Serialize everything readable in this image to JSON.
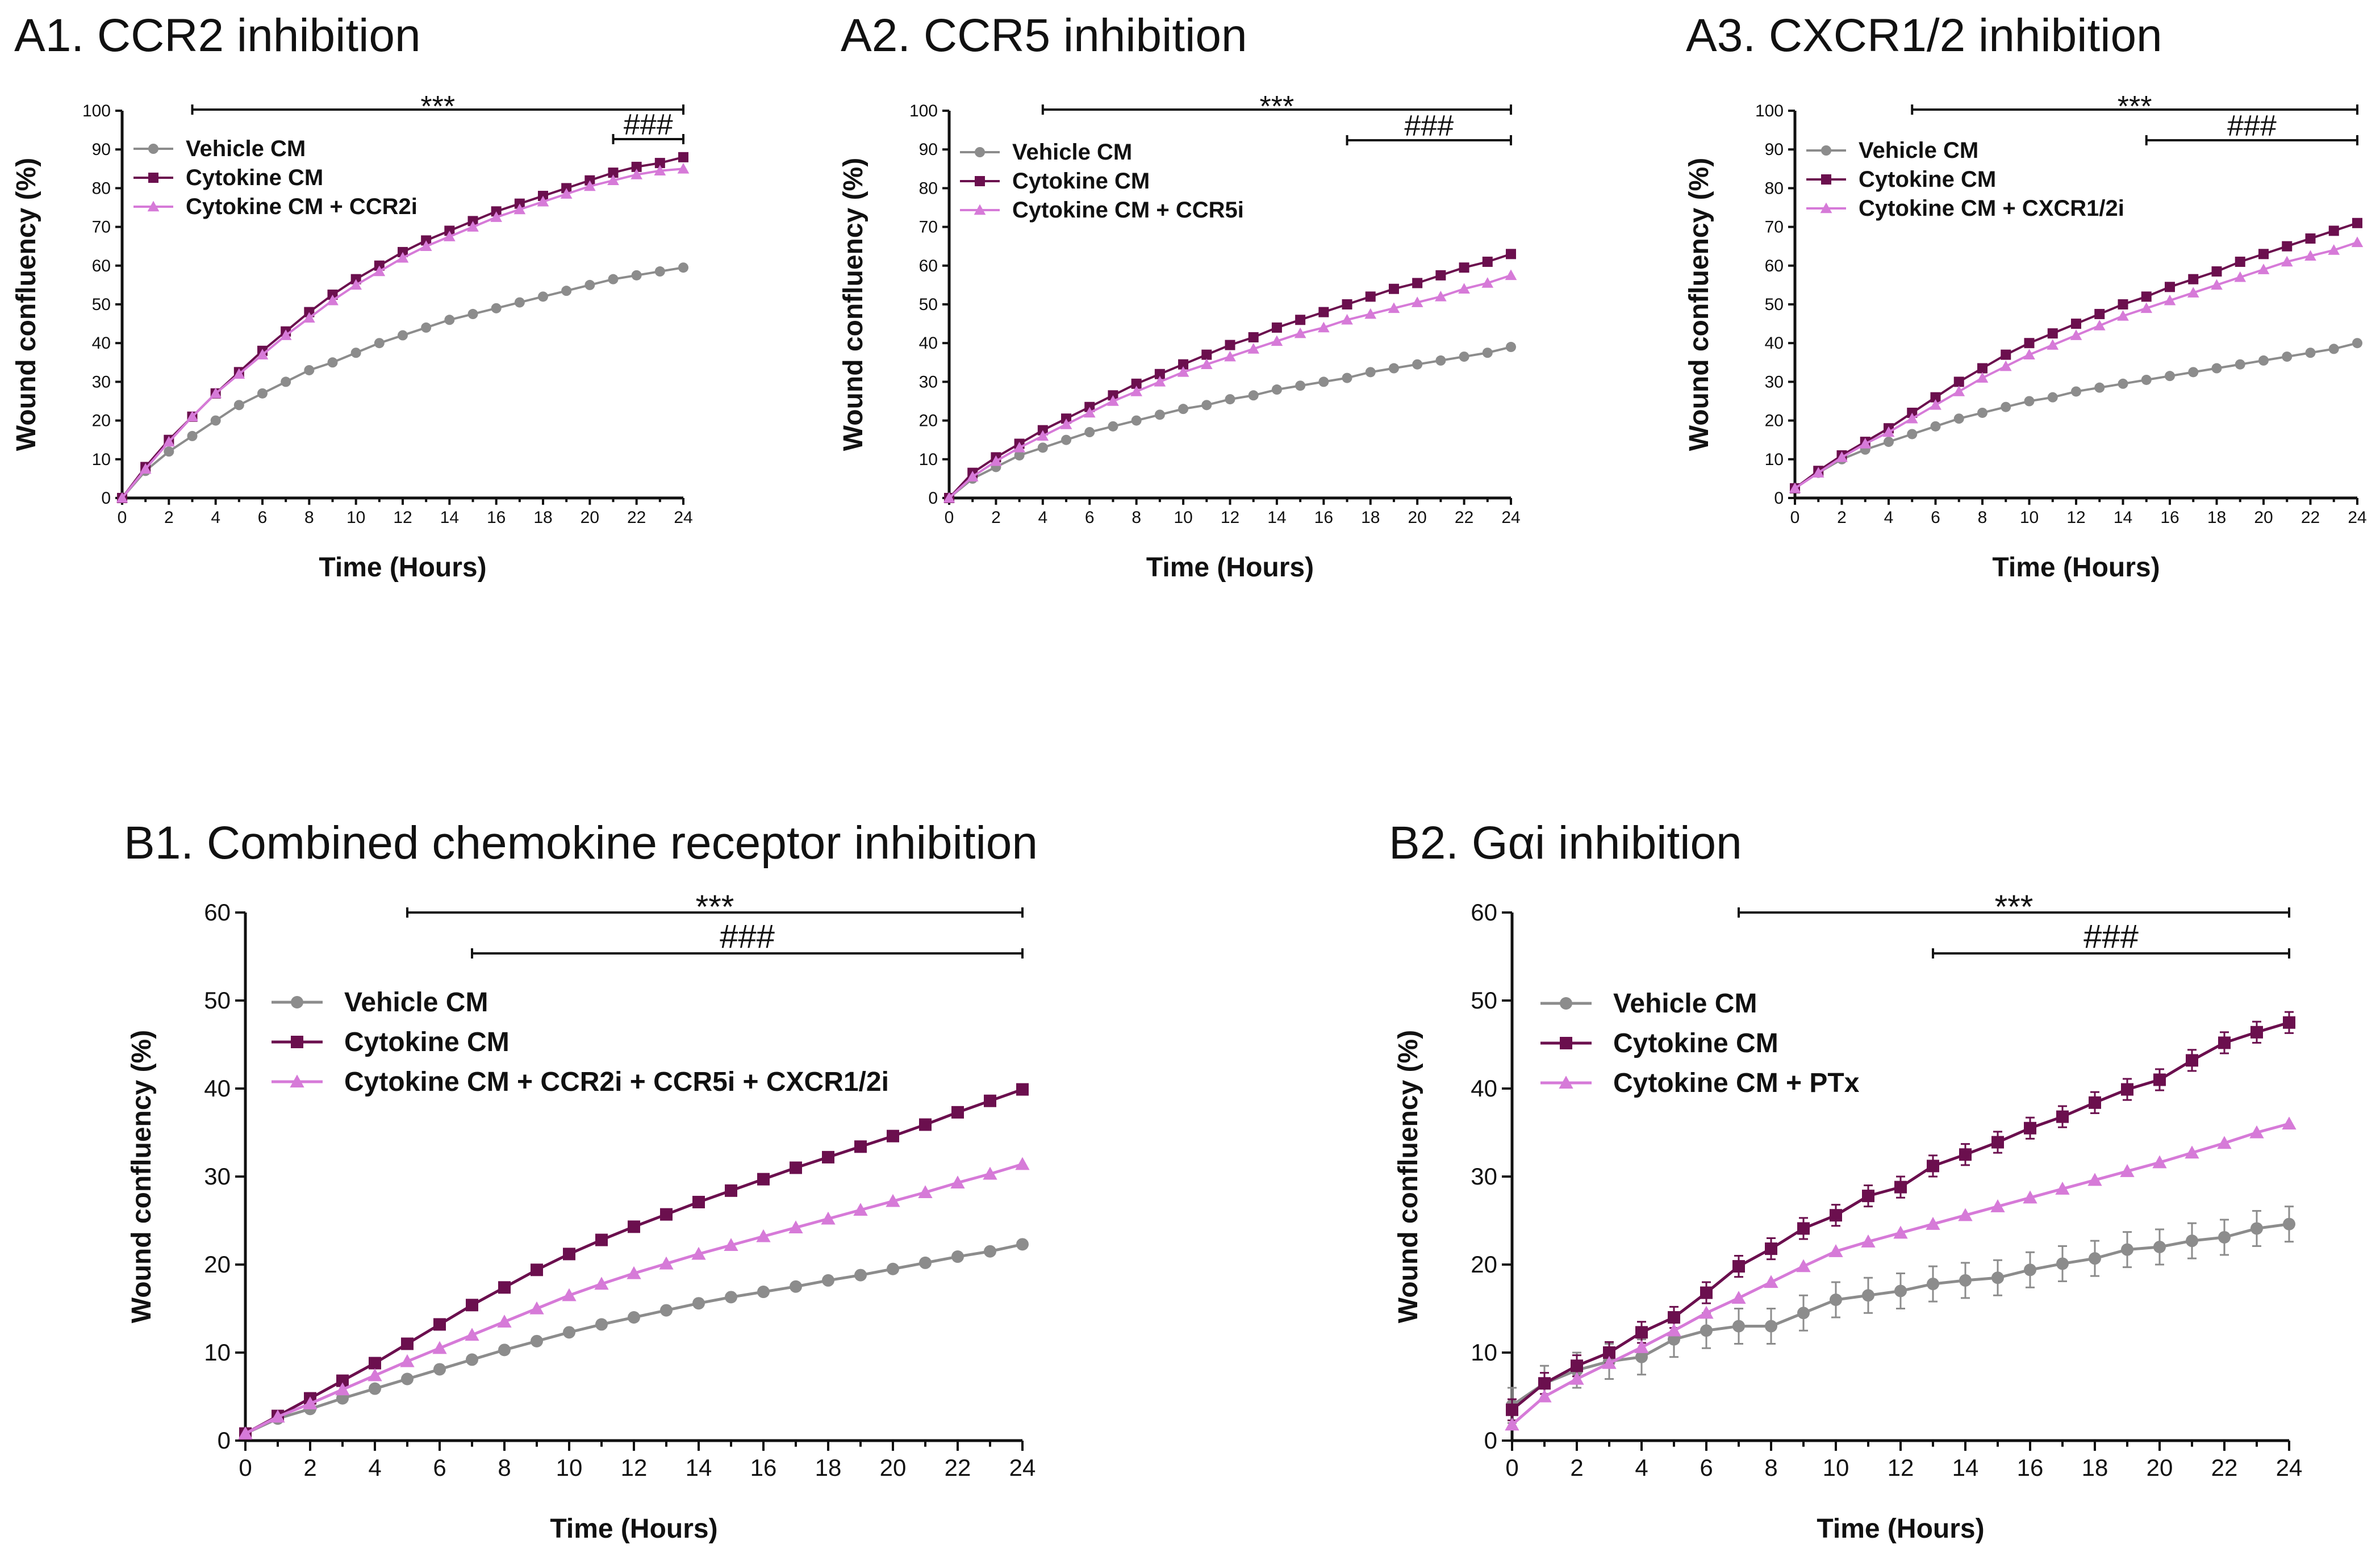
{
  "chart_data": [
    {
      "id": "A1",
      "type": "line",
      "title": "A1. CCR2 inhibition",
      "xlabel": "Time (Hours)",
      "ylabel": "Wound confluency (%)",
      "xlim": [
        0,
        24
      ],
      "ylim": [
        0,
        100
      ],
      "xticks": [
        0,
        2,
        4,
        6,
        8,
        10,
        12,
        14,
        16,
        18,
        20,
        22,
        24
      ],
      "yticks": [
        0,
        10,
        20,
        30,
        40,
        50,
        60,
        70,
        80,
        90,
        100
      ],
      "x": [
        0,
        1,
        2,
        3,
        4,
        5,
        6,
        7,
        8,
        9,
        10,
        11,
        12,
        13,
        14,
        15,
        16,
        17,
        18,
        19,
        20,
        21,
        22,
        23,
        24
      ],
      "series": [
        {
          "name": "Vehicle CM",
          "color": "#8c8c8c",
          "marker": "circle",
          "values": [
            0,
            7,
            12,
            16,
            20,
            24,
            27,
            30,
            33,
            35,
            37.5,
            40,
            42,
            44,
            46,
            47.5,
            49,
            50.5,
            52,
            53.5,
            55,
            56.5,
            57.5,
            58.5,
            59.5
          ]
        },
        {
          "name": "Cytokine CM",
          "color": "#6b0f4e",
          "marker": "square",
          "values": [
            0,
            8,
            15,
            21,
            27,
            32.5,
            38,
            43,
            48,
            52.5,
            56.5,
            60,
            63.5,
            66.5,
            69,
            71.5,
            74,
            76,
            78,
            80,
            82,
            84,
            85.5,
            86.5,
            88
          ]
        },
        {
          "name": "Cytokine CM + CCR2i",
          "color": "#d67ad8",
          "marker": "triangle",
          "values": [
            0,
            7.5,
            14.5,
            21,
            27,
            32,
            37,
            42,
            46.5,
            51,
            55,
            58.5,
            62,
            65,
            67.5,
            70,
            72.5,
            74.5,
            76.5,
            78.5,
            80.5,
            82,
            83.5,
            84.5,
            85
          ]
        }
      ],
      "significance": [
        {
          "label": "***",
          "x_start": 3,
          "x_end": 24
        },
        {
          "label": "###",
          "x_start": 21,
          "x_end": 24
        }
      ],
      "legend": "top-left"
    },
    {
      "id": "A2",
      "type": "line",
      "title": "A2. CCR5 inhibition",
      "xlabel": "Time (Hours)",
      "ylabel": "Wound confluency (%)",
      "xlim": [
        0,
        24
      ],
      "ylim": [
        0,
        100
      ],
      "xticks": [
        0,
        2,
        4,
        6,
        8,
        10,
        12,
        14,
        16,
        18,
        20,
        22,
        24
      ],
      "yticks": [
        0,
        10,
        20,
        30,
        40,
        50,
        60,
        70,
        80,
        90,
        100
      ],
      "x": [
        0,
        1,
        2,
        3,
        4,
        5,
        6,
        7,
        8,
        9,
        10,
        11,
        12,
        13,
        14,
        15,
        16,
        17,
        18,
        19,
        20,
        21,
        22,
        23,
        24
      ],
      "series": [
        {
          "name": "Vehicle CM",
          "color": "#8c8c8c",
          "marker": "circle",
          "values": [
            0,
            5,
            8,
            11,
            13,
            15,
            17,
            18.5,
            20,
            21.5,
            23,
            24,
            25.5,
            26.5,
            28,
            29,
            30,
            31,
            32.5,
            33.5,
            34.5,
            35.5,
            36.5,
            37.5,
            39
          ]
        },
        {
          "name": "Cytokine CM",
          "color": "#6b0f4e",
          "marker": "square",
          "values": [
            0,
            6.5,
            10.5,
            14,
            17.5,
            20.5,
            23.5,
            26.5,
            29.5,
            32,
            34.5,
            37,
            39.5,
            41.5,
            44,
            46,
            48,
            50,
            52,
            54,
            55.5,
            57.5,
            59.5,
            61,
            63
          ]
        },
        {
          "name": "Cytokine CM + CCR5i",
          "color": "#d67ad8",
          "marker": "triangle",
          "values": [
            0,
            5.5,
            9.5,
            13,
            16,
            19,
            22,
            25,
            27.5,
            30,
            32.5,
            34.5,
            36.5,
            38.5,
            40.5,
            42.5,
            44,
            46,
            47.5,
            49,
            50.5,
            52,
            54,
            55.5,
            57.5
          ]
        }
      ],
      "significance": [
        {
          "label": "***",
          "x_start": 4,
          "x_end": 24
        },
        {
          "label": "###",
          "x_start": 17,
          "x_end": 24
        }
      ],
      "legend": "top-left"
    },
    {
      "id": "A3",
      "type": "line",
      "title": "A3. CXCR1/2 inhibition",
      "xlabel": "Time (Hours)",
      "ylabel": "Wound confluency (%)",
      "xlim": [
        0,
        24
      ],
      "ylim": [
        0,
        100
      ],
      "xticks": [
        0,
        2,
        4,
        6,
        8,
        10,
        12,
        14,
        16,
        18,
        20,
        22,
        24
      ],
      "yticks": [
        0,
        10,
        20,
        30,
        40,
        50,
        60,
        70,
        80,
        90,
        100
      ],
      "x": [
        0,
        1,
        2,
        3,
        4,
        5,
        6,
        7,
        8,
        9,
        10,
        11,
        12,
        13,
        14,
        15,
        16,
        17,
        18,
        19,
        20,
        21,
        22,
        23,
        24
      ],
      "series": [
        {
          "name": "Vehicle CM",
          "color": "#8c8c8c",
          "marker": "circle",
          "values": [
            2.5,
            6.5,
            10,
            12.5,
            14.5,
            16.5,
            18.5,
            20.5,
            22,
            23.5,
            25,
            26,
            27.5,
            28.5,
            29.5,
            30.5,
            31.5,
            32.5,
            33.5,
            34.5,
            35.5,
            36.5,
            37.5,
            38.5,
            40
          ]
        },
        {
          "name": "Cytokine CM",
          "color": "#6b0f4e",
          "marker": "square",
          "values": [
            2.5,
            7,
            11,
            14.5,
            18,
            22,
            26,
            30,
            33.5,
            37,
            40,
            42.5,
            45,
            47.5,
            50,
            52,
            54.5,
            56.5,
            58.5,
            61,
            63,
            65,
            67,
            69,
            71
          ]
        },
        {
          "name": "Cytokine CM + CXCR1/2i",
          "color": "#d67ad8",
          "marker": "triangle",
          "values": [
            2.5,
            6.5,
            10.5,
            14,
            17,
            20.5,
            24,
            27.5,
            31,
            34,
            37,
            39.5,
            42,
            44.5,
            47,
            49,
            51,
            53,
            55,
            57,
            59,
            61,
            62.5,
            64,
            66
          ]
        }
      ],
      "significance": [
        {
          "label": "***",
          "x_start": 5,
          "x_end": 24
        },
        {
          "label": "###",
          "x_start": 15,
          "x_end": 24
        }
      ],
      "legend": "top-left"
    },
    {
      "id": "B1",
      "type": "line",
      "title": "B1. Combined chemokine receptor inhibition",
      "xlabel": "Time (Hours)",
      "ylabel": "Wound confluency (%)",
      "xlim": [
        0,
        24
      ],
      "ylim": [
        0,
        60
      ],
      "xticks": [
        0,
        2,
        4,
        6,
        8,
        10,
        12,
        14,
        16,
        18,
        20,
        22,
        24
      ],
      "yticks": [
        0,
        10,
        20,
        30,
        40,
        50,
        60
      ],
      "x": [
        0,
        1,
        2,
        3,
        4,
        5,
        6,
        7,
        8,
        9,
        10,
        11,
        12,
        13,
        14,
        15,
        16,
        17,
        18,
        19,
        20,
        21,
        22,
        23,
        24
      ],
      "series": [
        {
          "name": "Vehicle CM",
          "color": "#8c8c8c",
          "marker": "circle",
          "values": [
            0.8,
            2.5,
            3.6,
            4.8,
            5.9,
            7,
            8.1,
            9.2,
            10.3,
            11.3,
            12.3,
            13.2,
            14,
            14.8,
            15.6,
            16.3,
            16.9,
            17.5,
            18.2,
            18.8,
            19.5,
            20.2,
            20.9,
            21.5,
            22.3
          ]
        },
        {
          "name": "Cytokine CM",
          "color": "#6b0f4e",
          "marker": "square",
          "values": [
            0.8,
            2.8,
            4.8,
            6.8,
            8.8,
            11,
            13.2,
            15.4,
            17.4,
            19.4,
            21.2,
            22.8,
            24.3,
            25.7,
            27.1,
            28.4,
            29.7,
            31,
            32.2,
            33.4,
            34.6,
            35.9,
            37.3,
            38.6,
            39.9
          ]
        },
        {
          "name": "Cytokine CM + CCR2i + CCR5i + CXCR1/2i",
          "color": "#d67ad8",
          "marker": "triangle",
          "values": [
            0.8,
            2.7,
            4.2,
            5.8,
            7.4,
            9,
            10.5,
            12,
            13.5,
            15,
            16.5,
            17.8,
            19,
            20.1,
            21.2,
            22.2,
            23.2,
            24.2,
            25.2,
            26.2,
            27.2,
            28.2,
            29.3,
            30.3,
            31.4
          ]
        }
      ],
      "significance": [
        {
          "label": "***",
          "x_start": 5,
          "x_end": 24
        },
        {
          "label": "###",
          "x_start": 7,
          "x_end": 24
        }
      ],
      "legend": "top-left"
    },
    {
      "id": "B2",
      "type": "line",
      "title": "B2. Gαi inhibition",
      "xlabel": "Time (Hours)",
      "ylabel": "Wound confluency (%)",
      "xlim": [
        0,
        24
      ],
      "ylim": [
        0,
        60
      ],
      "xticks": [
        0,
        2,
        4,
        6,
        8,
        10,
        12,
        14,
        16,
        18,
        20,
        22,
        24
      ],
      "yticks": [
        0,
        10,
        20,
        30,
        40,
        50,
        60
      ],
      "x": [
        0,
        1,
        2,
        3,
        4,
        5,
        6,
        7,
        8,
        9,
        10,
        11,
        12,
        13,
        14,
        15,
        16,
        17,
        18,
        19,
        20,
        21,
        22,
        23,
        24
      ],
      "series": [
        {
          "name": "Vehicle CM",
          "color": "#8c8c8c",
          "marker": "circle",
          "values": [
            4,
            6.5,
            8,
            9,
            9.5,
            11.5,
            12.5,
            13,
            13,
            14.5,
            16,
            16.5,
            17,
            17.8,
            18.2,
            18.5,
            19.4,
            20.1,
            20.7,
            21.7,
            22,
            22.7,
            23.1,
            24.1,
            24.6
          ]
        },
        {
          "name": "Cytokine CM",
          "color": "#6b0f4e",
          "marker": "square",
          "values": [
            3.5,
            6.5,
            8.5,
            10,
            12.3,
            14,
            16.8,
            19.8,
            21.8,
            24.1,
            25.6,
            27.8,
            28.8,
            31.2,
            32.5,
            33.9,
            35.5,
            36.8,
            38.4,
            39.9,
            41,
            43.2,
            45.2,
            46.4,
            47.5
          ]
        },
        {
          "name": "Cytokine CM + PTx",
          "color": "#d67ad8",
          "marker": "triangle",
          "values": [
            1.8,
            5,
            7,
            8.8,
            10.6,
            12.5,
            14.5,
            16.2,
            18,
            19.8,
            21.5,
            22.6,
            23.6,
            24.6,
            25.6,
            26.6,
            27.6,
            28.6,
            29.6,
            30.6,
            31.6,
            32.7,
            33.8,
            35,
            36
          ]
        }
      ],
      "error_bars": {
        "Vehicle CM": 2,
        "Cytokine CM": 1.2
      },
      "significance": [
        {
          "label": "***",
          "x_start": 7,
          "x_end": 24
        },
        {
          "label": "###",
          "x_start": 13,
          "x_end": 24
        }
      ],
      "legend": "top-left"
    }
  ]
}
